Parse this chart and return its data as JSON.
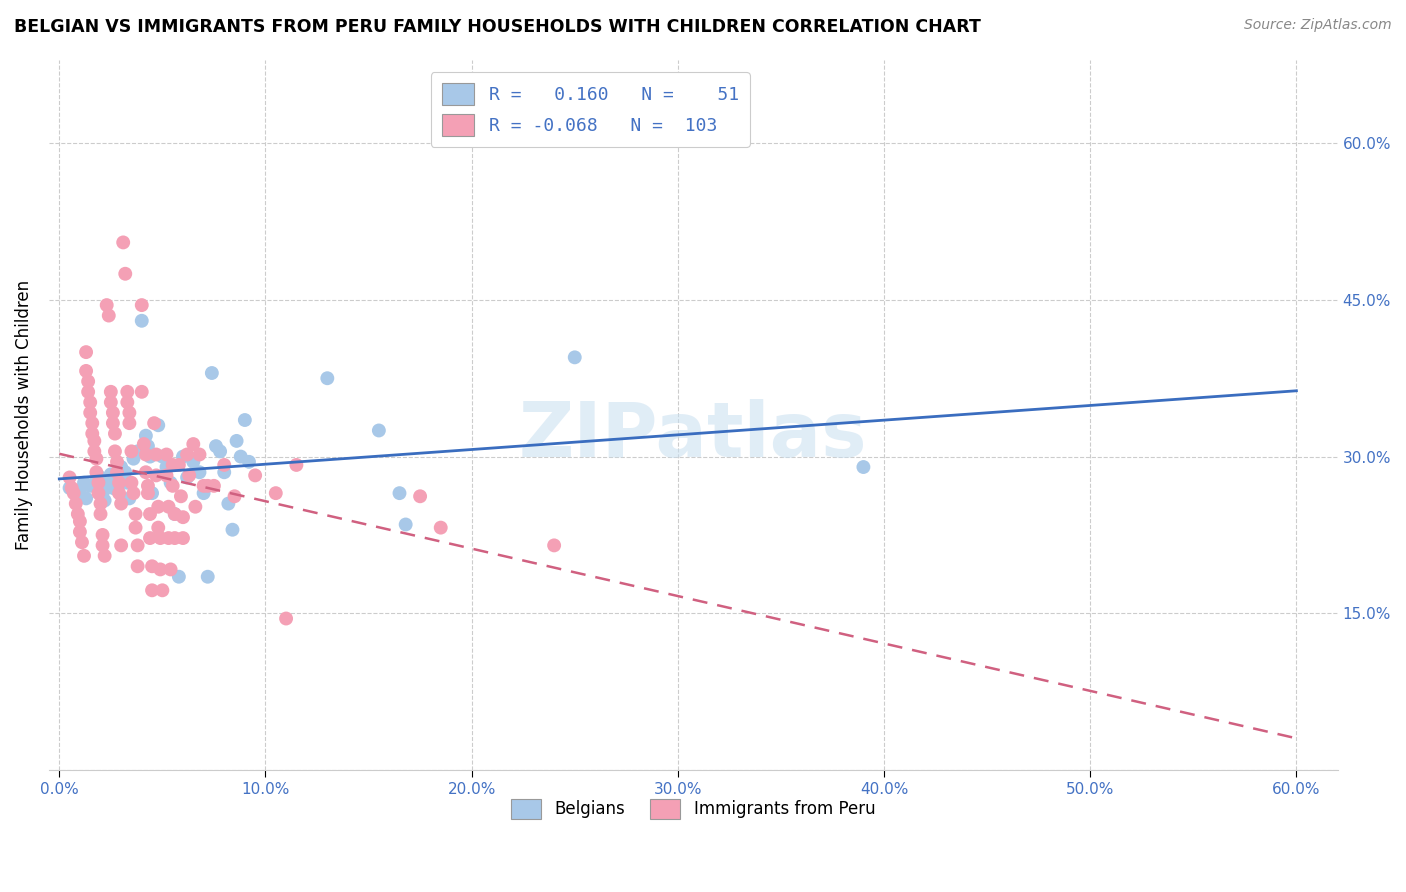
{
  "title": "BELGIAN VS IMMIGRANTS FROM PERU FAMILY HOUSEHOLDS WITH CHILDREN CORRELATION CHART",
  "source": "Source: ZipAtlas.com",
  "ylabel": "Family Households with Children",
  "x_ticks": [
    0.0,
    0.1,
    0.2,
    0.3,
    0.4,
    0.5,
    0.6
  ],
  "x_tick_labels": [
    "0.0%",
    "10.0%",
    "20.0%",
    "30.0%",
    "40.0%",
    "50.0%",
    "60.0%"
  ],
  "y_ticks_right": [
    0.15,
    0.3,
    0.45,
    0.6
  ],
  "y_tick_labels_right": [
    "15.0%",
    "30.0%",
    "45.0%",
    "60.0%"
  ],
  "xlim": [
    -0.005,
    0.62
  ],
  "ylim": [
    0.0,
    0.68
  ],
  "legend_labels": [
    "Belgians",
    "Immigrants from Peru"
  ],
  "belgian_color": "#a8c8e8",
  "peru_color": "#f4a0b5",
  "belgian_line_color": "#3a6dbf",
  "peru_line_color": "#d06080",
  "legend_text_color": "#4472c4",
  "axis_label_color": "#4472c4",
  "background_color": "#ffffff",
  "grid_color": "#cccccc",
  "watermark": "ZIPatlas",
  "belgian_points": [
    [
      0.005,
      0.27
    ],
    [
      0.008,
      0.265
    ],
    [
      0.01,
      0.268
    ],
    [
      0.012,
      0.275
    ],
    [
      0.013,
      0.26
    ],
    [
      0.015,
      0.272
    ],
    [
      0.018,
      0.278
    ],
    [
      0.02,
      0.28
    ],
    [
      0.021,
      0.265
    ],
    [
      0.022,
      0.258
    ],
    [
      0.024,
      0.276
    ],
    [
      0.025,
      0.283
    ],
    [
      0.026,
      0.27
    ],
    [
      0.028,
      0.268
    ],
    [
      0.03,
      0.29
    ],
    [
      0.032,
      0.285
    ],
    [
      0.033,
      0.275
    ],
    [
      0.034,
      0.26
    ],
    [
      0.036,
      0.298
    ],
    [
      0.038,
      0.305
    ],
    [
      0.04,
      0.43
    ],
    [
      0.042,
      0.32
    ],
    [
      0.043,
      0.31
    ],
    [
      0.044,
      0.3
    ],
    [
      0.045,
      0.265
    ],
    [
      0.048,
      0.33
    ],
    [
      0.05,
      0.3
    ],
    [
      0.052,
      0.29
    ],
    [
      0.054,
      0.275
    ],
    [
      0.056,
      0.245
    ],
    [
      0.058,
      0.185
    ],
    [
      0.06,
      0.3
    ],
    [
      0.062,
      0.28
    ],
    [
      0.065,
      0.295
    ],
    [
      0.068,
      0.285
    ],
    [
      0.07,
      0.265
    ],
    [
      0.072,
      0.185
    ],
    [
      0.074,
      0.38
    ],
    [
      0.076,
      0.31
    ],
    [
      0.078,
      0.305
    ],
    [
      0.08,
      0.285
    ],
    [
      0.082,
      0.255
    ],
    [
      0.084,
      0.23
    ],
    [
      0.086,
      0.315
    ],
    [
      0.088,
      0.3
    ],
    [
      0.09,
      0.335
    ],
    [
      0.092,
      0.295
    ],
    [
      0.13,
      0.375
    ],
    [
      0.155,
      0.325
    ],
    [
      0.165,
      0.265
    ],
    [
      0.168,
      0.235
    ],
    [
      0.25,
      0.395
    ],
    [
      0.39,
      0.29
    ]
  ],
  "peru_points": [
    [
      0.005,
      0.28
    ],
    [
      0.006,
      0.27
    ],
    [
      0.007,
      0.265
    ],
    [
      0.008,
      0.255
    ],
    [
      0.009,
      0.245
    ],
    [
      0.01,
      0.238
    ],
    [
      0.01,
      0.228
    ],
    [
      0.011,
      0.218
    ],
    [
      0.012,
      0.205
    ],
    [
      0.013,
      0.4
    ],
    [
      0.013,
      0.382
    ],
    [
      0.014,
      0.372
    ],
    [
      0.014,
      0.362
    ],
    [
      0.015,
      0.352
    ],
    [
      0.015,
      0.342
    ],
    [
      0.016,
      0.332
    ],
    [
      0.016,
      0.322
    ],
    [
      0.017,
      0.315
    ],
    [
      0.017,
      0.305
    ],
    [
      0.018,
      0.298
    ],
    [
      0.018,
      0.285
    ],
    [
      0.019,
      0.275
    ],
    [
      0.019,
      0.265
    ],
    [
      0.02,
      0.255
    ],
    [
      0.02,
      0.245
    ],
    [
      0.021,
      0.225
    ],
    [
      0.021,
      0.215
    ],
    [
      0.022,
      0.205
    ],
    [
      0.023,
      0.445
    ],
    [
      0.024,
      0.435
    ],
    [
      0.025,
      0.362
    ],
    [
      0.025,
      0.352
    ],
    [
      0.026,
      0.342
    ],
    [
      0.026,
      0.332
    ],
    [
      0.027,
      0.322
    ],
    [
      0.027,
      0.305
    ],
    [
      0.028,
      0.295
    ],
    [
      0.028,
      0.285
    ],
    [
      0.029,
      0.275
    ],
    [
      0.029,
      0.265
    ],
    [
      0.03,
      0.255
    ],
    [
      0.03,
      0.215
    ],
    [
      0.031,
      0.505
    ],
    [
      0.032,
      0.475
    ],
    [
      0.033,
      0.362
    ],
    [
      0.033,
      0.352
    ],
    [
      0.034,
      0.342
    ],
    [
      0.034,
      0.332
    ],
    [
      0.035,
      0.305
    ],
    [
      0.035,
      0.275
    ],
    [
      0.036,
      0.265
    ],
    [
      0.037,
      0.245
    ],
    [
      0.037,
      0.232
    ],
    [
      0.038,
      0.215
    ],
    [
      0.038,
      0.195
    ],
    [
      0.04,
      0.445
    ],
    [
      0.04,
      0.362
    ],
    [
      0.041,
      0.312
    ],
    [
      0.042,
      0.302
    ],
    [
      0.042,
      0.285
    ],
    [
      0.043,
      0.272
    ],
    [
      0.043,
      0.265
    ],
    [
      0.044,
      0.245
    ],
    [
      0.044,
      0.222
    ],
    [
      0.045,
      0.195
    ],
    [
      0.045,
      0.172
    ],
    [
      0.046,
      0.332
    ],
    [
      0.047,
      0.302
    ],
    [
      0.047,
      0.282
    ],
    [
      0.048,
      0.252
    ],
    [
      0.048,
      0.232
    ],
    [
      0.049,
      0.222
    ],
    [
      0.049,
      0.192
    ],
    [
      0.05,
      0.172
    ],
    [
      0.052,
      0.302
    ],
    [
      0.052,
      0.282
    ],
    [
      0.053,
      0.252
    ],
    [
      0.053,
      0.222
    ],
    [
      0.054,
      0.192
    ],
    [
      0.055,
      0.292
    ],
    [
      0.055,
      0.272
    ],
    [
      0.056,
      0.245
    ],
    [
      0.056,
      0.222
    ],
    [
      0.058,
      0.292
    ],
    [
      0.059,
      0.262
    ],
    [
      0.06,
      0.242
    ],
    [
      0.06,
      0.222
    ],
    [
      0.062,
      0.302
    ],
    [
      0.063,
      0.282
    ],
    [
      0.065,
      0.312
    ],
    [
      0.066,
      0.252
    ],
    [
      0.068,
      0.302
    ],
    [
      0.07,
      0.272
    ],
    [
      0.072,
      0.272
    ],
    [
      0.075,
      0.272
    ],
    [
      0.08,
      0.292
    ],
    [
      0.085,
      0.262
    ],
    [
      0.095,
      0.282
    ],
    [
      0.105,
      0.265
    ],
    [
      0.11,
      0.145
    ],
    [
      0.115,
      0.292
    ],
    [
      0.175,
      0.262
    ],
    [
      0.185,
      0.232
    ],
    [
      0.24,
      0.215
    ]
  ]
}
